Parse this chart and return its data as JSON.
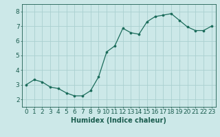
{
  "x": [
    0,
    1,
    2,
    3,
    4,
    5,
    6,
    7,
    8,
    9,
    10,
    11,
    12,
    13,
    14,
    15,
    16,
    17,
    18,
    19,
    20,
    21,
    22,
    23
  ],
  "y": [
    3.0,
    3.35,
    3.2,
    2.85,
    2.75,
    2.45,
    2.25,
    2.25,
    2.6,
    3.55,
    5.25,
    5.65,
    6.85,
    6.55,
    6.45,
    7.3,
    7.65,
    7.75,
    7.85,
    7.4,
    6.95,
    6.7,
    6.7,
    7.0
  ],
  "line_color": "#1a6b5a",
  "marker_color": "#1a6b5a",
  "bg_color": "#cce8e8",
  "grid_color": "#aad0d0",
  "xlabel": "Humidex (Indice chaleur)",
  "ylim": [
    1.5,
    8.5
  ],
  "xlim": [
    -0.5,
    23.5
  ],
  "yticks": [
    2,
    3,
    4,
    5,
    6,
    7,
    8
  ],
  "xticks": [
    0,
    1,
    2,
    3,
    4,
    5,
    6,
    7,
    8,
    9,
    10,
    11,
    12,
    13,
    14,
    15,
    16,
    17,
    18,
    19,
    20,
    21,
    22,
    23
  ],
  "tick_color": "#1a5c4e",
  "label_fontsize": 7,
  "tick_fontsize": 6.5
}
